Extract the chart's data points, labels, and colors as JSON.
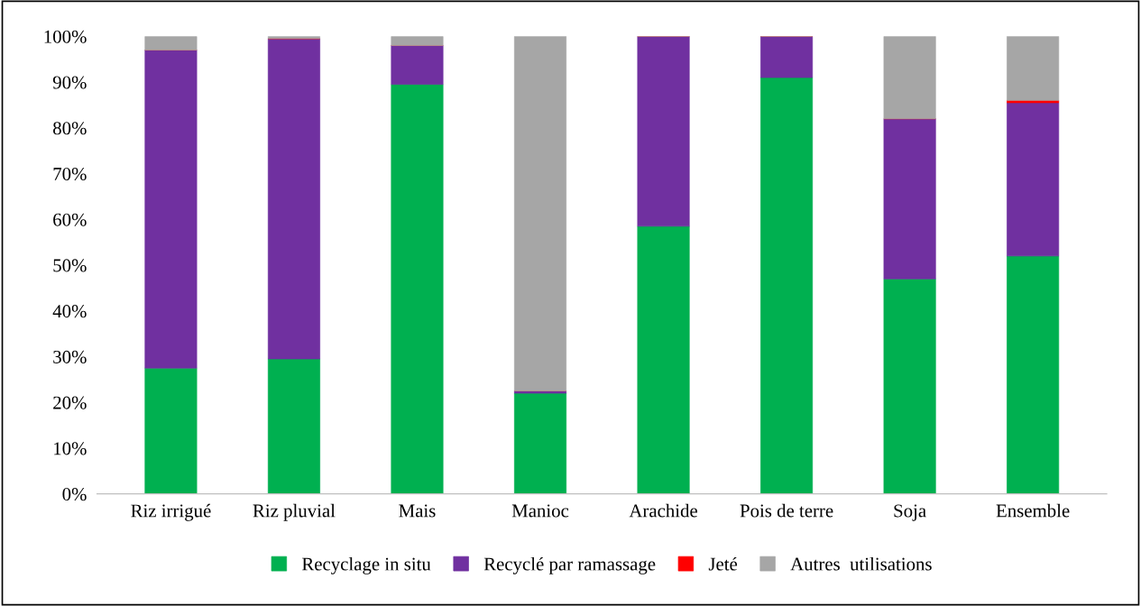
{
  "chart_data": {
    "type": "bar",
    "stacked": true,
    "categories": [
      "Riz irrigué",
      "Riz pluvial",
      "Mais",
      "Manioc",
      "Arachide",
      "Pois de terre",
      "Soja",
      "Ensemble"
    ],
    "series": [
      {
        "name": "Recyclage in situ",
        "color": "#00b050",
        "values": [
          27.5,
          29.5,
          89.5,
          22,
          58.5,
          91,
          47,
          52
        ]
      },
      {
        "name": "Recyclé par ramassage",
        "color": "#7030a0",
        "values": [
          69.5,
          70,
          8.5,
          0.5,
          41.5,
          9,
          35,
          33.5
        ]
      },
      {
        "name": "Jeté",
        "color": "#ff0000",
        "values": [
          0,
          0,
          0,
          0,
          0,
          0,
          0,
          0.5
        ]
      },
      {
        "name": "Autres  utilisations",
        "color": "#a6a6a6",
        "values": [
          3,
          0.5,
          2,
          77.5,
          0,
          0,
          18,
          14
        ]
      }
    ],
    "ylim": [
      0,
      100
    ],
    "yticks": [
      {
        "value": 0,
        "label": "0%"
      },
      {
        "value": 10,
        "label": "10%"
      },
      {
        "value": 20,
        "label": "20%"
      },
      {
        "value": 30,
        "label": "30%"
      },
      {
        "value": 40,
        "label": "40%"
      },
      {
        "value": 50,
        "label": "50%"
      },
      {
        "value": 60,
        "label": "60%"
      },
      {
        "value": 70,
        "label": "70%"
      },
      {
        "value": 80,
        "label": "80%"
      },
      {
        "value": 90,
        "label": "90%"
      },
      {
        "value": 100,
        "label": "100%"
      }
    ],
    "grid": false,
    "legend": "bottom"
  }
}
